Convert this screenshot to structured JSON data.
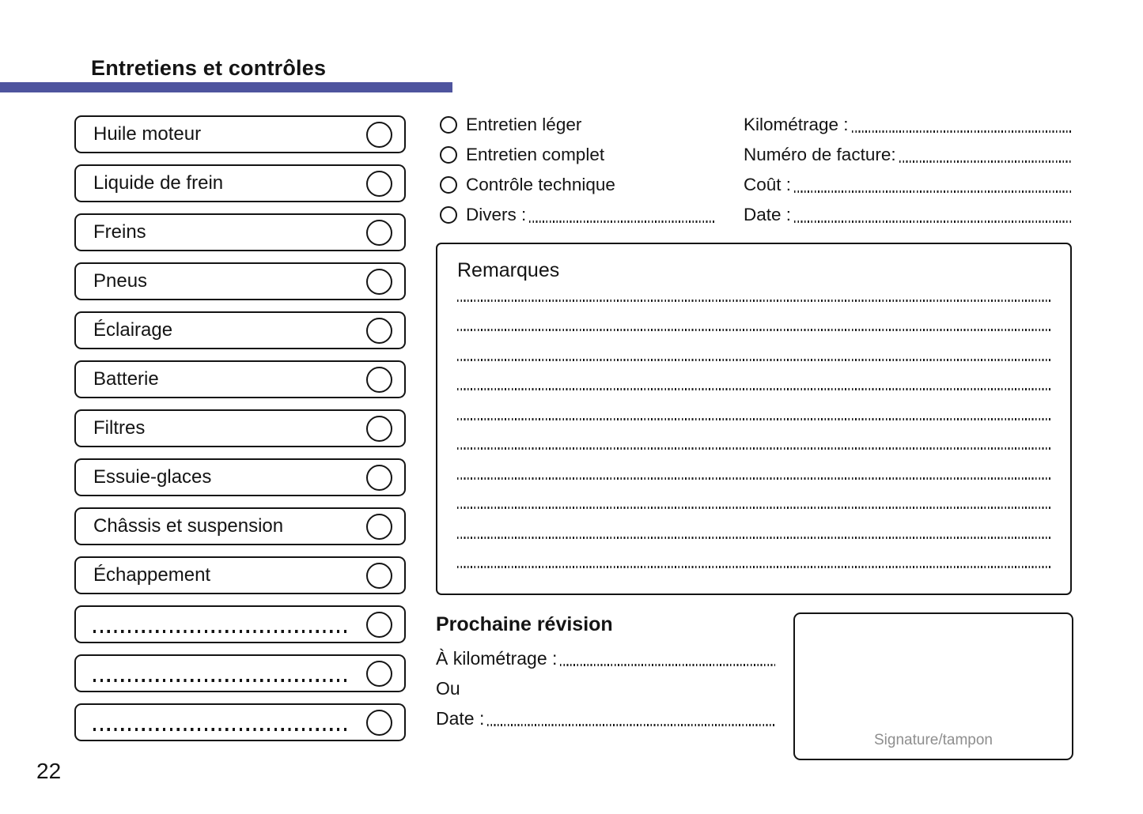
{
  "header": {
    "title": "Entretiens et contrôles",
    "page_number": "22",
    "accent_color": "#4e549e"
  },
  "checklist": {
    "items": [
      {
        "label": "Huile moteur"
      },
      {
        "label": "Liquide de frein"
      },
      {
        "label": "Freins"
      },
      {
        "label": "Pneus"
      },
      {
        "label": "Éclairage"
      },
      {
        "label": "Batterie"
      },
      {
        "label": "Filtres"
      },
      {
        "label": "Essuie-glaces"
      },
      {
        "label": "Châssis et suspension"
      },
      {
        "label": "Échappement"
      },
      {
        "label": "",
        "blank": true
      },
      {
        "label": "",
        "blank": true
      },
      {
        "label": "",
        "blank": true
      }
    ]
  },
  "service_types": {
    "options": [
      {
        "label": "Entretien léger"
      },
      {
        "label": "Entretien complet"
      },
      {
        "label": "Contrôle technique"
      },
      {
        "label": "Divers :",
        "has_line": true
      }
    ]
  },
  "invoice_fields": {
    "fields": [
      {
        "label": "Kilométrage :"
      },
      {
        "label": "Numéro de facture:"
      },
      {
        "label": "Coût :"
      },
      {
        "label": "Date :"
      }
    ]
  },
  "remarks": {
    "title": "Remarques",
    "line_count": 10
  },
  "next_service": {
    "title": "Prochaine révision",
    "rows": [
      {
        "label": "À kilométrage :",
        "has_line": true
      },
      {
        "label": "Ou"
      },
      {
        "label": "Date :",
        "has_line": true
      }
    ]
  },
  "signature": {
    "label": "Signature/tampon"
  }
}
